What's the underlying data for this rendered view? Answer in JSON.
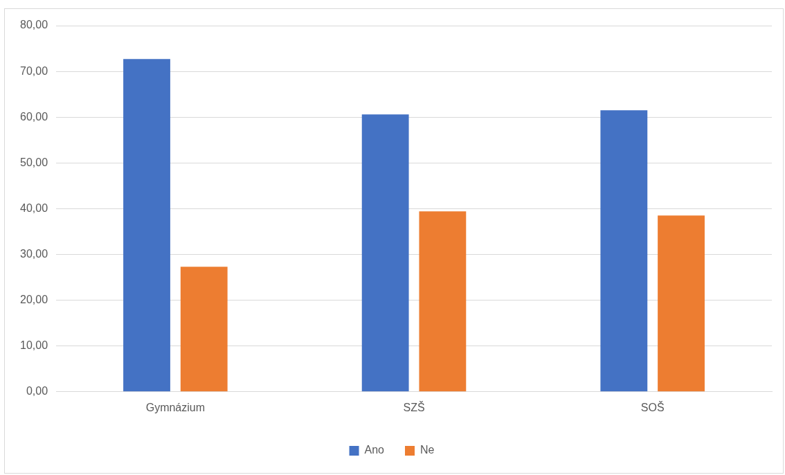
{
  "chart_data": {
    "type": "bar",
    "categories": [
      "Gymnázium",
      "SZŠ",
      "SOŠ"
    ],
    "series": [
      {
        "name": "Ano",
        "color": "#4472c4",
        "values": [
          72.7,
          60.6,
          61.5
        ]
      },
      {
        "name": "Ne",
        "color": "#ed7d31",
        "values": [
          27.3,
          39.4,
          38.5
        ]
      }
    ],
    "ylim": [
      0,
      80
    ],
    "yticks": [
      {
        "value": 0,
        "label": "0,00"
      },
      {
        "value": 10,
        "label": "10,00"
      },
      {
        "value": 20,
        "label": "20,00"
      },
      {
        "value": 30,
        "label": "30,00"
      },
      {
        "value": 40,
        "label": "40,00"
      },
      {
        "value": 50,
        "label": "50,00"
      },
      {
        "value": 60,
        "label": "60,00"
      },
      {
        "value": 70,
        "label": "70,00"
      },
      {
        "value": 80,
        "label": "80,00"
      }
    ],
    "grid": "y",
    "legend": "bottom"
  }
}
